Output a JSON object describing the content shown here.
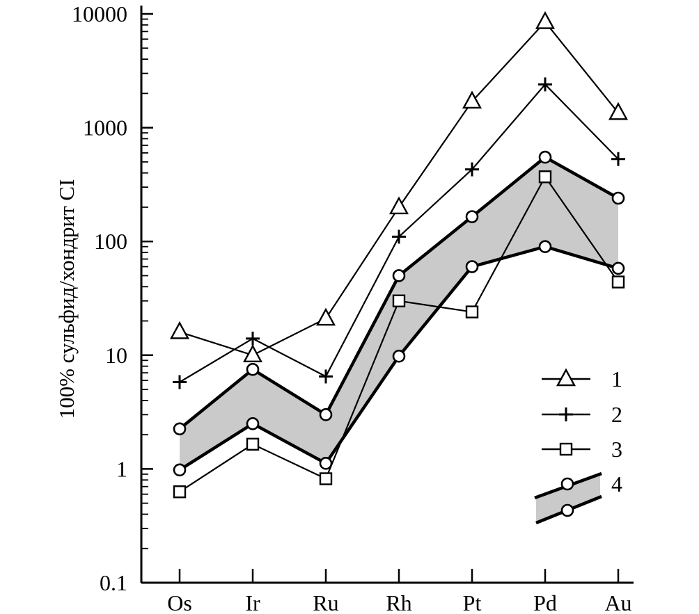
{
  "chart_data": {
    "type": "line",
    "title": "",
    "xlabel": "",
    "ylabel": "100% сульфид/хондрит CI",
    "yscale": "log",
    "ylim": [
      0.1,
      10000
    ],
    "grid": false,
    "legend_position": "right",
    "categories": [
      "Os",
      "Ir",
      "Ru",
      "Rh",
      "Pt",
      "Pd",
      "Au"
    ],
    "y_ticks": [
      {
        "value": 0.1,
        "label": "0.1"
      },
      {
        "value": 1,
        "label": "1"
      },
      {
        "value": 10,
        "label": "10"
      },
      {
        "value": 100,
        "label": "100"
      },
      {
        "value": 1000,
        "label": "1000"
      },
      {
        "value": 10000,
        "label": "10000"
      }
    ],
    "series": [
      {
        "name": "1",
        "marker": "triangle",
        "values": [
          16,
          10,
          21,
          200,
          1700,
          8500,
          1350
        ]
      },
      {
        "name": "2",
        "marker": "plus",
        "values": [
          5.8,
          14,
          6.5,
          110,
          430,
          2400,
          530
        ]
      },
      {
        "name": "3",
        "marker": "square",
        "values": [
          0.63,
          1.65,
          0.82,
          30,
          24,
          370,
          44
        ]
      },
      {
        "name": "4",
        "marker": "circle",
        "band": true,
        "upper": [
          2.25,
          7.5,
          3.0,
          50,
          165,
          550,
          240
        ],
        "lower": [
          0.98,
          2.5,
          1.12,
          9.8,
          60,
          90,
          58
        ]
      }
    ]
  }
}
